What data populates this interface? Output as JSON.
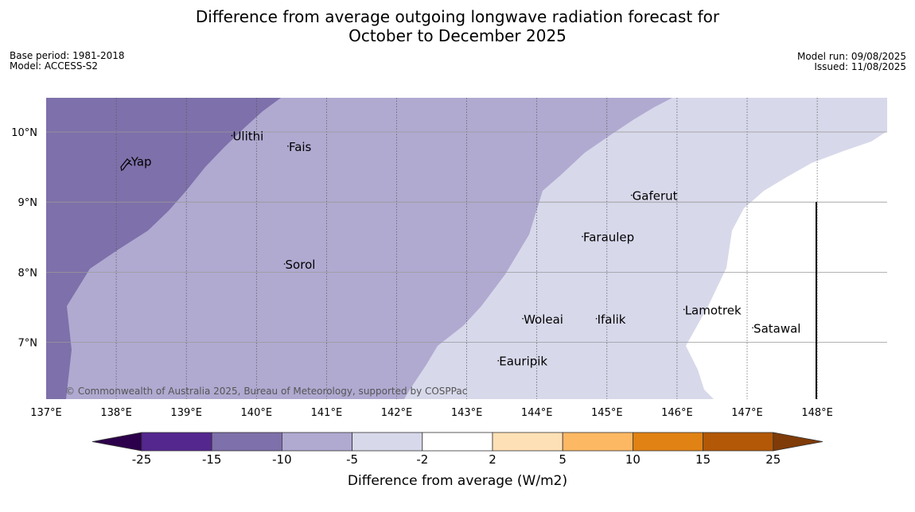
{
  "title": {
    "line1": "Difference from average outgoing longwave radiation forecast for",
    "line2": "October to December 2025"
  },
  "metadata": {
    "base_period": "Base period: 1981-2018",
    "model": "Model: ACCESS-S2",
    "model_run": "Model run: 09/08/2025",
    "issued": "Issued: 11/08/2025"
  },
  "map": {
    "lon_range": [
      137,
      149
    ],
    "lat_range": [
      6.2,
      10.5
    ],
    "lon_ticks": [
      {
        "value": 137,
        "label": "137°E"
      },
      {
        "value": 138,
        "label": "138°E"
      },
      {
        "value": 139,
        "label": "139°E"
      },
      {
        "value": 140,
        "label": "140°E"
      },
      {
        "value": 141,
        "label": "141°E"
      },
      {
        "value": 142,
        "label": "142°E"
      },
      {
        "value": 143,
        "label": "143°E"
      },
      {
        "value": 144,
        "label": "144°E"
      },
      {
        "value": 145,
        "label": "145°E"
      },
      {
        "value": 146,
        "label": "146°E"
      },
      {
        "value": 147,
        "label": "147°E"
      },
      {
        "value": 148,
        "label": "148°E"
      }
    ],
    "lat_ticks": [
      {
        "value": 10,
        "label": "10°N"
      },
      {
        "value": 9,
        "label": "9°N"
      },
      {
        "value": 8,
        "label": "8°N"
      },
      {
        "value": 7,
        "label": "7°N"
      }
    ],
    "places": [
      {
        "name": "Yap",
        "lon": 138.2,
        "lat": 9.52
      },
      {
        "name": "Ulithi",
        "lon": 139.65,
        "lat": 9.88
      },
      {
        "name": "Fais",
        "lon": 140.45,
        "lat": 9.73
      },
      {
        "name": "Sorol",
        "lon": 140.4,
        "lat": 8.05
      },
      {
        "name": "Gaferut",
        "lon": 145.35,
        "lat": 9.03
      },
      {
        "name": "Faraulep",
        "lon": 144.65,
        "lat": 8.44
      },
      {
        "name": "Woleai",
        "lon": 143.8,
        "lat": 7.27
      },
      {
        "name": "Ifalik",
        "lon": 144.85,
        "lat": 7.27
      },
      {
        "name": "Lamotrek",
        "lon": 146.1,
        "lat": 7.4
      },
      {
        "name": "Satawal",
        "lon": 147.08,
        "lat": 7.14
      },
      {
        "name": "Eauripik",
        "lon": 143.45,
        "lat": 6.67
      }
    ],
    "copyright": "© Commonwealth of Australia 2025, Bureau of Meteorology, supported by COSPPac"
  },
  "legend": {
    "label": "Difference from average (W/m2)",
    "bins": [
      {
        "from": -25,
        "to": -15,
        "color": "#54278f"
      },
      {
        "from": -15,
        "to": -10,
        "color": "#7e70aa"
      },
      {
        "from": -10,
        "to": -5,
        "color": "#b0aad1"
      },
      {
        "from": -5,
        "to": -2,
        "color": "#d7d8ea"
      },
      {
        "from": -2,
        "to": 2,
        "color": "#ffffff"
      },
      {
        "from": 2,
        "to": 5,
        "color": "#fee0b6"
      },
      {
        "from": 5,
        "to": 10,
        "color": "#fdb863"
      },
      {
        "from": 10,
        "to": 15,
        "color": "#e08214"
      },
      {
        "from": 15,
        "to": 25,
        "color": "#b35806"
      }
    ],
    "extend_low_color": "#2d004b",
    "extend_high_color": "#7f3b08",
    "tick_labels": [
      "-25",
      "-15",
      "-10",
      "-5",
      "-2",
      "2",
      "5",
      "10",
      "15",
      "25"
    ]
  },
  "colors": {
    "anomaly_-15_to_-10": "#7e70aa",
    "anomaly_-10_to_-5": "#b0aad1",
    "anomaly_-5_to_-2": "#d7d8ea",
    "anomaly_-2_to_2": "#ffffff"
  }
}
